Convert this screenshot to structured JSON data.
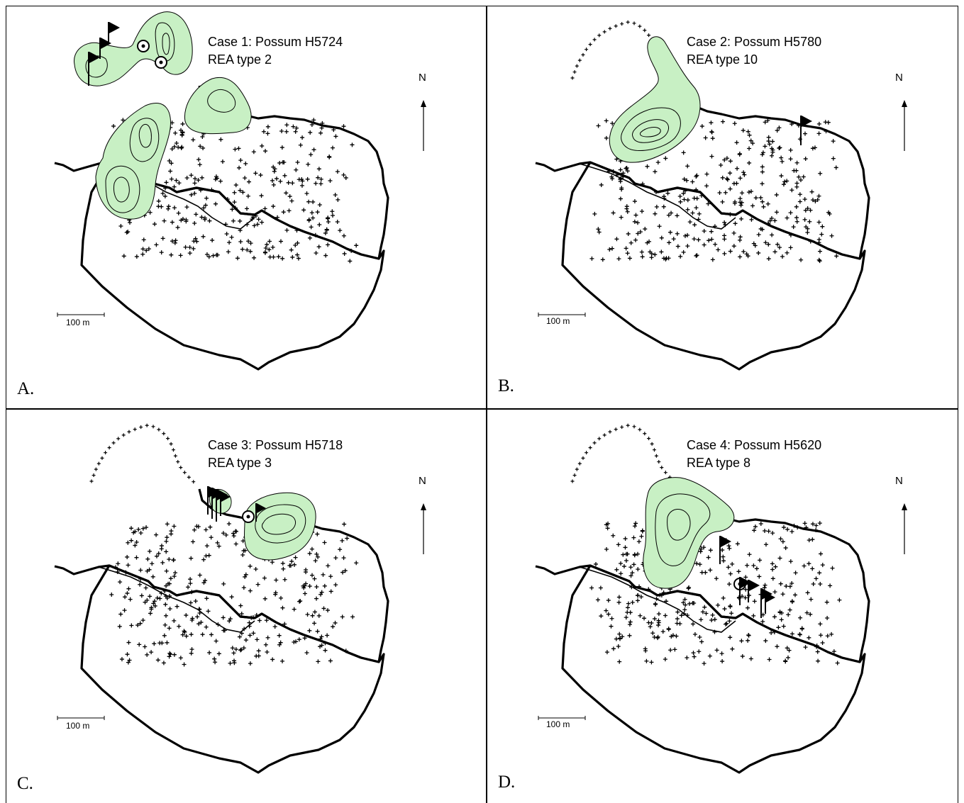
{
  "figure": {
    "north_label": "N",
    "scale_label": "100 m",
    "colors": {
      "kernel_fill": "#c8f0c4",
      "kernel_line": "#000000",
      "boundary": "#000000"
    },
    "panels": [
      {
        "letter": "A.",
        "title": "Case 1: Possum H5724",
        "subtitle": "REA type 2",
        "markers": [
          "flag-icon",
          "flag-icon",
          "flag-icon",
          "target-icon",
          "target-icon"
        ]
      },
      {
        "letter": "B.",
        "title": "Case 2: Possum H5780",
        "subtitle": "REA type 10",
        "markers": [
          "flag-icon"
        ]
      },
      {
        "letter": "C.",
        "title": "Case 3: Possum H5718",
        "subtitle": "REA type 3",
        "markers": [
          "flag-cluster-icon",
          "target-icon",
          "flag-icon"
        ]
      },
      {
        "letter": "D.",
        "title": "Case 4: Possum H5620",
        "subtitle": "REA type 8",
        "markers": [
          "flag-icon",
          "target-icon",
          "flag-cluster-icon"
        ]
      }
    ]
  }
}
